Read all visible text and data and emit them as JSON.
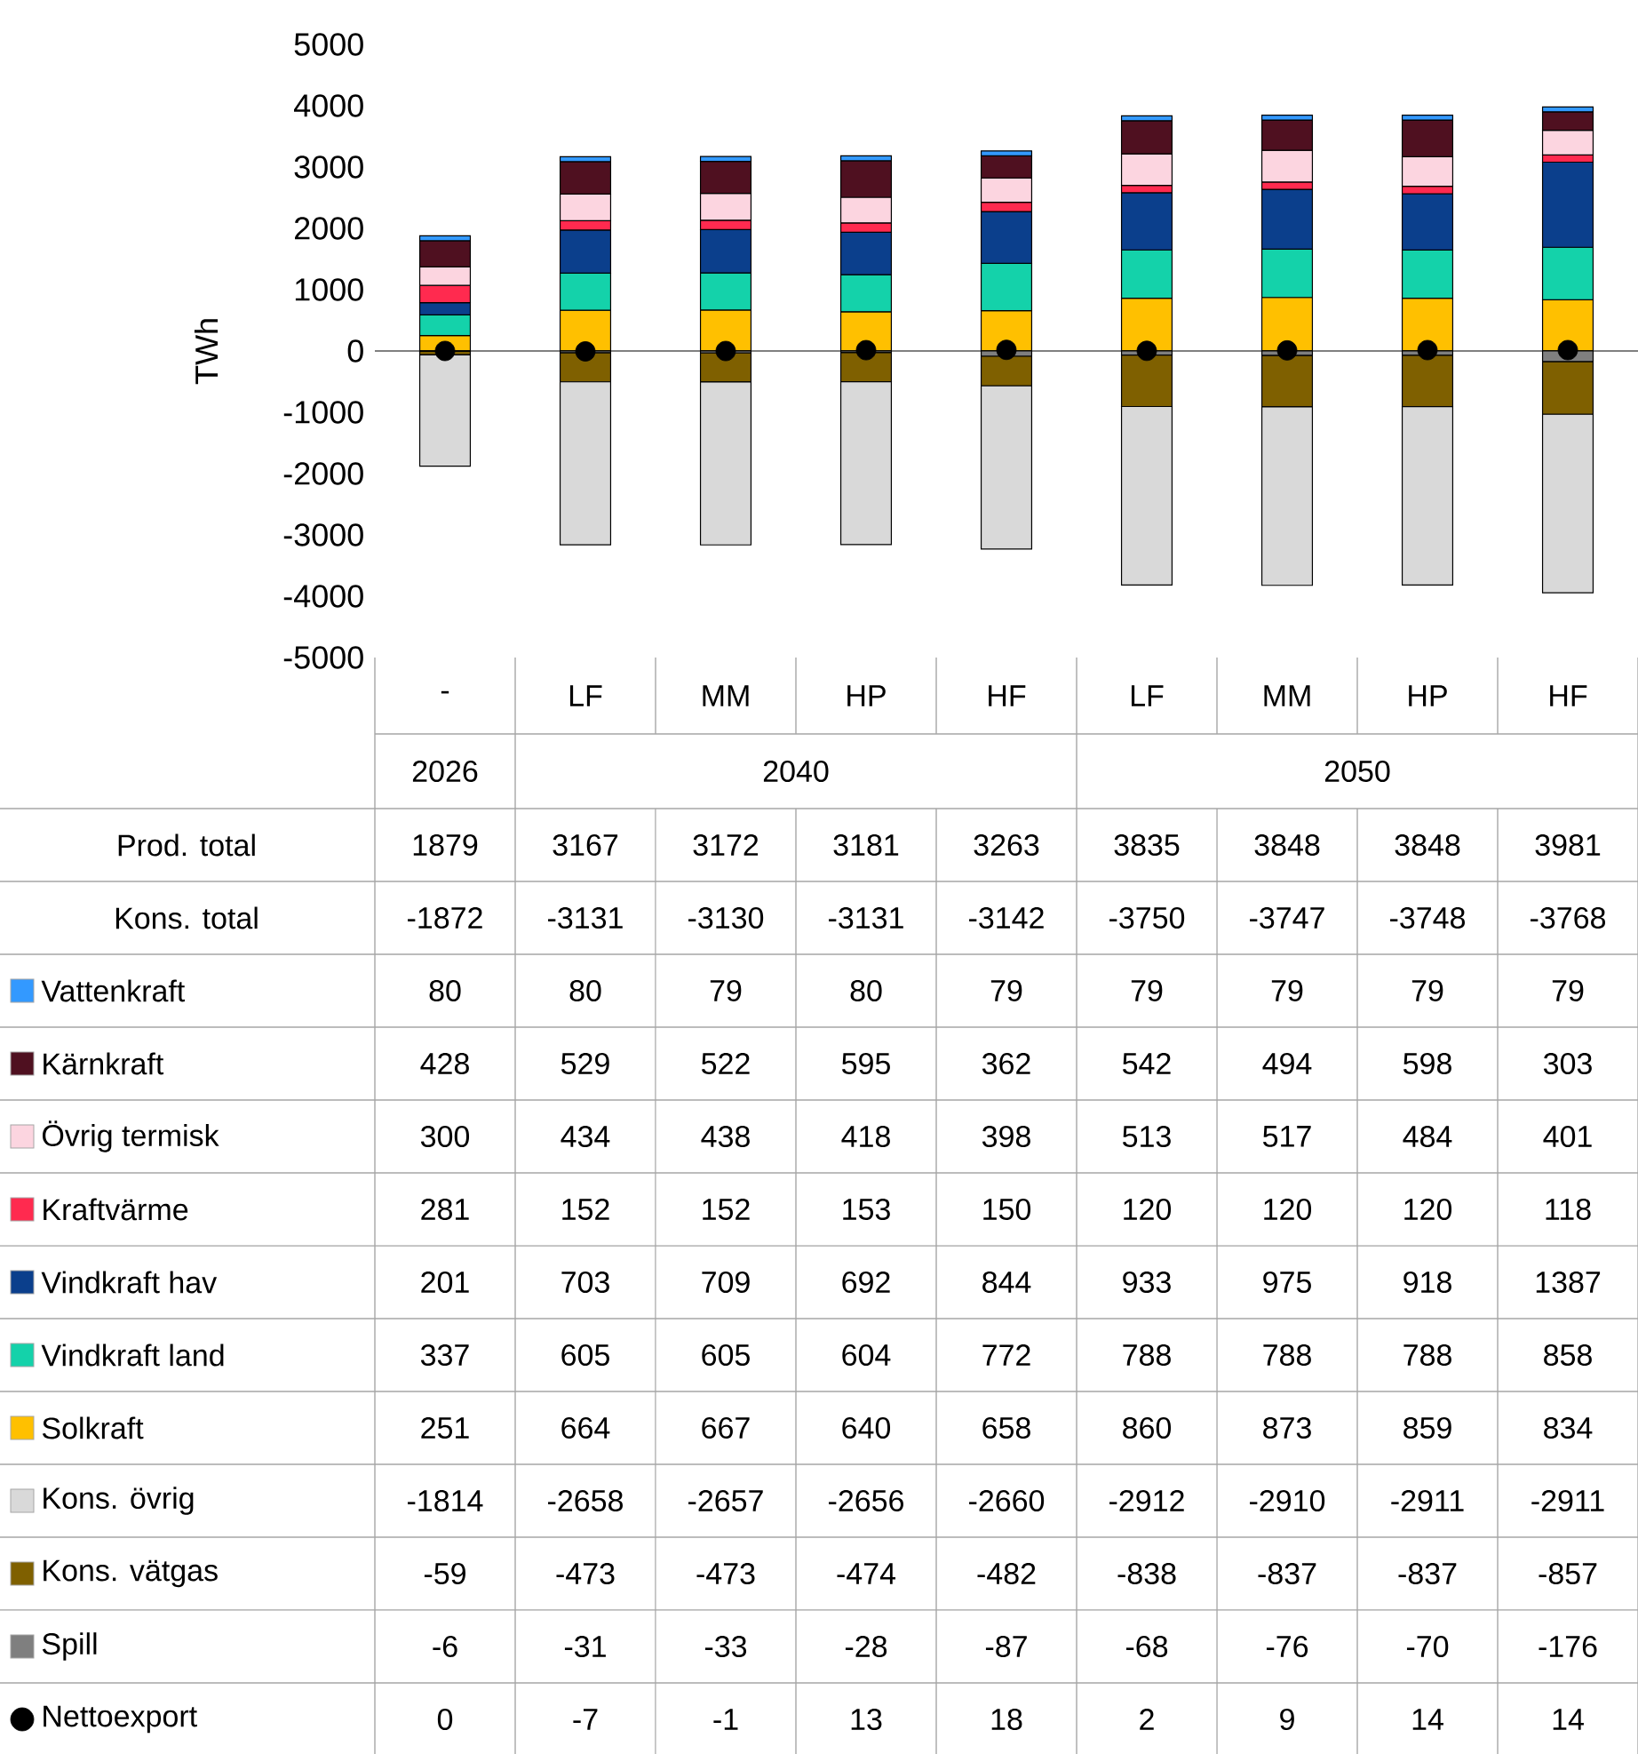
{
  "chart_data": {
    "type": "bar",
    "stacked": true,
    "data_labels": true,
    "legend": "bottom",
    "ylabel": "TWh",
    "ylim": [
      -5000,
      5000
    ],
    "yticks": [
      -5000,
      -4000,
      -3000,
      -2000,
      -1000,
      0,
      1000,
      2000,
      3000,
      4000,
      5000
    ],
    "categories": [
      "-",
      "LF",
      "MM",
      "HP",
      "HF",
      "LF",
      "MM",
      "HP",
      "HF"
    ],
    "annotations": [
      "2026",
      "2040",
      "2050",
      "Prod. total",
      "1879",
      "3167",
      "3172",
      "3181",
      "3263",
      "3835",
      "3848",
      "3848",
      "3981",
      "Kons. total",
      "-1872",
      "-3131",
      "-3130",
      "-3131",
      "-3142",
      "-3750",
      "-3747",
      "-3748",
      "-3768"
    ],
    "series": [
      {
        "name": "Solkraft",
        "color": "#ffc000",
        "values": [
          251,
          664,
          667,
          640,
          658,
          860,
          873,
          859,
          834
        ]
      },
      {
        "name": "Vindkraft land",
        "color": "#14d2aa",
        "values": [
          337,
          605,
          605,
          604,
          772,
          788,
          788,
          788,
          858
        ]
      },
      {
        "name": "Vindkraft hav",
        "color": "#0b3f8c",
        "values": [
          201,
          703,
          709,
          692,
          844,
          933,
          975,
          918,
          1387
        ]
      },
      {
        "name": "Kraftvärme",
        "color": "#ff2a4f",
        "values": [
          281,
          152,
          152,
          153,
          150,
          120,
          120,
          120,
          118
        ]
      },
      {
        "name": "Övrig termisk",
        "color": "#fcd5e0",
        "values": [
          300,
          434,
          438,
          418,
          398,
          513,
          517,
          484,
          401
        ]
      },
      {
        "name": "Kärnkraft",
        "color": "#4f1020",
        "values": [
          428,
          529,
          522,
          595,
          362,
          542,
          494,
          598,
          303
        ]
      },
      {
        "name": "Vattenkraft",
        "color": "#3399ff",
        "values": [
          80,
          80,
          79,
          80,
          79,
          79,
          79,
          79,
          79
        ]
      },
      {
        "name": "Spill",
        "color": "#7f7f7f",
        "values": [
          -6,
          -31,
          -33,
          -28,
          -87,
          -68,
          -76,
          -70,
          -176
        ]
      },
      {
        "name": "Kons. vätgas",
        "color": "#7f6000",
        "values": [
          -59,
          -473,
          -473,
          -474,
          -482,
          -838,
          -837,
          -837,
          -857
        ]
      },
      {
        "name": "Kons. övrig",
        "color": "#d9d9d9",
        "values": [
          -1814,
          -2658,
          -2657,
          -2656,
          -2660,
          -2912,
          -2910,
          -2911,
          -2911
        ]
      },
      {
        "name": "Nettoexport",
        "type": "scatter",
        "marker": "circle",
        "color": "#000000",
        "values": [
          0,
          -7,
          -1,
          13,
          18,
          2,
          9,
          14,
          14
        ]
      }
    ]
  }
}
